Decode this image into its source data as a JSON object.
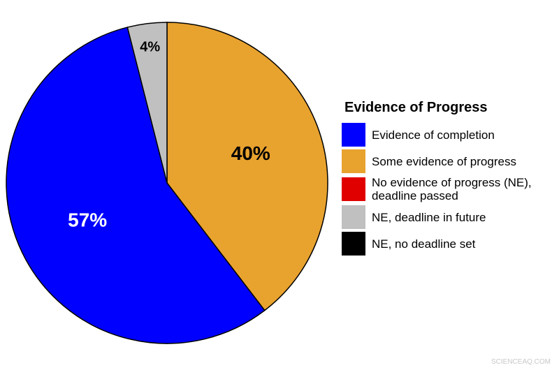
{
  "chart_data": {
    "type": "pie",
    "legend_title": "Evidence of Progress",
    "categories": [
      "Evidence of completion",
      "Some evidence of progress",
      "No evidence of progress (NE), deadline passed",
      "NE, deadline in future",
      "NE, no deadline set"
    ],
    "values": [
      57,
      40,
      0,
      4,
      0
    ],
    "value_labels": [
      "57%",
      "40%",
      null,
      "4%",
      null
    ],
    "colors": [
      "#0000ff",
      "#e8a22e",
      "#e00000",
      "#c0c0c0",
      "#000000"
    ],
    "legend": "right",
    "watermark": "SCIENCEAQ.COM"
  }
}
